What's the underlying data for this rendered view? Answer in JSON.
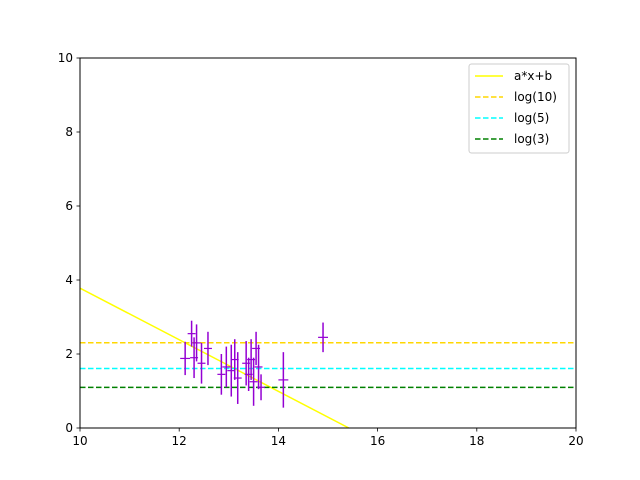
{
  "chart_data": {
    "type": "scatter",
    "title": "",
    "xlabel": "",
    "ylabel": "",
    "xlim": [
      10,
      20
    ],
    "ylim": [
      0,
      10
    ],
    "x_ticks": [
      "10",
      "12",
      "14",
      "16",
      "18",
      "20"
    ],
    "y_ticks": [
      "0",
      "2",
      "4",
      "6",
      "8",
      "10"
    ],
    "grid": false,
    "legend_position": "top-right",
    "lines": [
      {
        "name": "a*x+b",
        "kind": "fit",
        "color": "#ffff00",
        "style": "solid",
        "x": [
          10,
          15.42
        ],
        "y": [
          3.78,
          0
        ]
      },
      {
        "name": "log(10)",
        "kind": "hline",
        "color": "#ffd700",
        "style": "dashed",
        "y": 2.303
      },
      {
        "name": "log(5)",
        "kind": "hline",
        "color": "#00ffff",
        "style": "dashed",
        "y": 1.609
      },
      {
        "name": "log(3)",
        "kind": "hline",
        "color": "#008000",
        "style": "dashed",
        "y": 1.099
      }
    ],
    "points": {
      "color": "#9400d3",
      "values": [
        {
          "x": 12.12,
          "y": 1.88,
          "yerr": 0.45,
          "xerr": 0.1
        },
        {
          "x": 12.25,
          "y": 2.55,
          "yerr": 0.35,
          "xerr": 0.08
        },
        {
          "x": 12.3,
          "y": 1.9,
          "yerr": 0.55,
          "xerr": 0.08
        },
        {
          "x": 12.35,
          "y": 2.3,
          "yerr": 0.5,
          "xerr": 0.08
        },
        {
          "x": 12.45,
          "y": 1.75,
          "yerr": 0.55,
          "xerr": 0.08
        },
        {
          "x": 12.58,
          "y": 2.15,
          "yerr": 0.45,
          "xerr": 0.08
        },
        {
          "x": 12.85,
          "y": 1.45,
          "yerr": 0.55,
          "xerr": 0.08
        },
        {
          "x": 12.95,
          "y": 1.65,
          "yerr": 0.55,
          "xerr": 0.08
        },
        {
          "x": 13.05,
          "y": 1.55,
          "yerr": 0.7,
          "xerr": 0.08
        },
        {
          "x": 13.12,
          "y": 1.85,
          "yerr": 0.55,
          "xerr": 0.08
        },
        {
          "x": 13.18,
          "y": 1.35,
          "yerr": 0.7,
          "xerr": 0.08
        },
        {
          "x": 13.35,
          "y": 1.75,
          "yerr": 0.6,
          "xerr": 0.08
        },
        {
          "x": 13.4,
          "y": 1.45,
          "yerr": 0.45,
          "xerr": 0.08
        },
        {
          "x": 13.45,
          "y": 1.85,
          "yerr": 0.55,
          "xerr": 0.08
        },
        {
          "x": 13.5,
          "y": 1.25,
          "yerr": 0.65,
          "xerr": 0.08
        },
        {
          "x": 13.55,
          "y": 2.15,
          "yerr": 0.45,
          "xerr": 0.08
        },
        {
          "x": 13.6,
          "y": 1.65,
          "yerr": 0.6,
          "xerr": 0.08
        },
        {
          "x": 13.65,
          "y": 1.1,
          "yerr": 0.35,
          "xerr": 0.08
        },
        {
          "x": 14.1,
          "y": 1.3,
          "yerr": 0.75,
          "xerr": 0.1
        },
        {
          "x": 14.9,
          "y": 2.45,
          "yerr": 0.4,
          "xerr": 0.1
        }
      ]
    },
    "legend": [
      "a*x+b",
      "log(10)",
      "log(5)",
      "log(3)"
    ]
  }
}
